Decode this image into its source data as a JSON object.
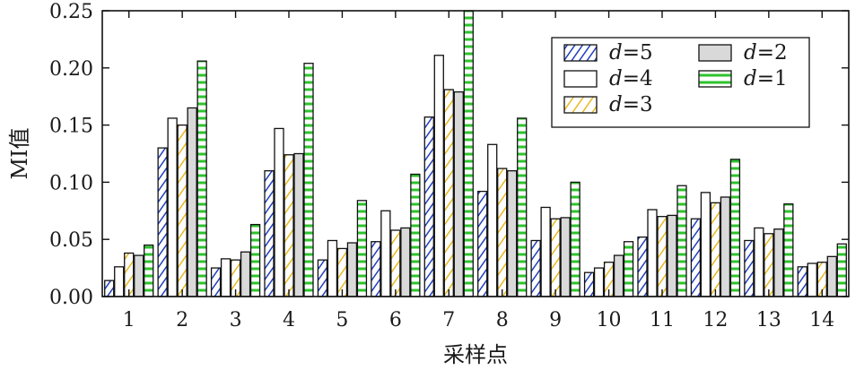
{
  "chart_data": {
    "type": "bar",
    "title": "",
    "xlabel": "采样点",
    "ylabel": "MI值",
    "ylim": [
      0,
      0.25
    ],
    "yticks": [
      "0.00",
      "0.05",
      "0.10",
      "0.15",
      "0.20",
      "0.25"
    ],
    "categories": [
      "1",
      "2",
      "3",
      "4",
      "5",
      "6",
      "7",
      "8",
      "9",
      "10",
      "11",
      "12",
      "13",
      "14"
    ],
    "grid": false,
    "legend_position": "top-right",
    "series": [
      {
        "name": "d=5",
        "var": "d",
        "val": "=5",
        "pattern": "blue-diagonal-hatch",
        "color": "#1f3fbf",
        "values": [
          0.014,
          0.13,
          0.025,
          0.11,
          0.032,
          0.048,
          0.157,
          0.092,
          0.049,
          0.021,
          0.052,
          0.068,
          0.049,
          0.026
        ]
      },
      {
        "name": "d=4",
        "var": "d",
        "val": "=4",
        "pattern": "white",
        "color": "#ffffff",
        "values": [
          0.026,
          0.156,
          0.033,
          0.147,
          0.049,
          0.075,
          0.211,
          0.133,
          0.078,
          0.025,
          0.076,
          0.091,
          0.06,
          0.029
        ]
      },
      {
        "name": "d=3",
        "var": "d",
        "val": "=3",
        "pattern": "yellow-diagonal-hatch",
        "color": "#e8b820",
        "values": [
          0.038,
          0.15,
          0.032,
          0.124,
          0.042,
          0.058,
          0.181,
          0.112,
          0.068,
          0.03,
          0.07,
          0.082,
          0.055,
          0.03
        ]
      },
      {
        "name": "d=2",
        "var": "d",
        "val": "=2",
        "pattern": "gray",
        "color": "#d9d9d9",
        "values": [
          0.036,
          0.165,
          0.039,
          0.125,
          0.047,
          0.06,
          0.179,
          0.11,
          0.069,
          0.036,
          0.071,
          0.087,
          0.059,
          0.035
        ]
      },
      {
        "name": "d=1",
        "var": "d",
        "val": "=1",
        "pattern": "green-horizontal-dash",
        "color": "#2ec22e",
        "values": [
          0.045,
          0.206,
          0.063,
          0.204,
          0.084,
          0.107,
          0.25,
          0.156,
          0.1,
          0.048,
          0.097,
          0.12,
          0.081,
          0.046
        ]
      }
    ],
    "legend_order": [
      "d=5",
      "d=4",
      "d=3",
      "d=2",
      "d=1"
    ]
  }
}
